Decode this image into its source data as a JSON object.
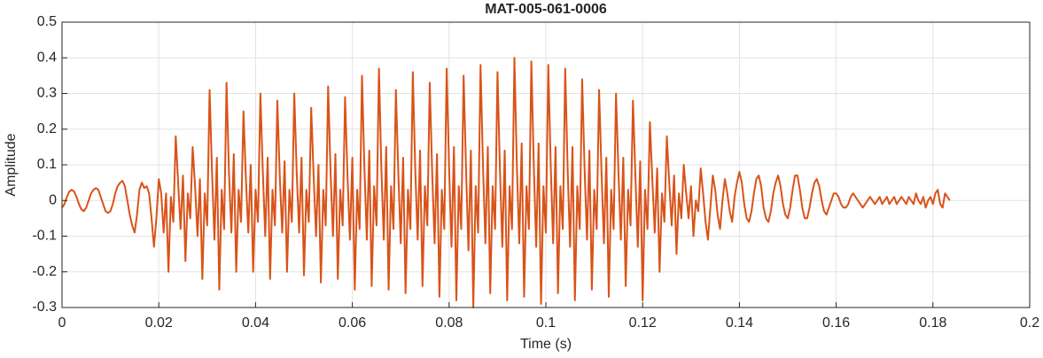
{
  "chart_data": {
    "type": "line",
    "title": "MAT-005-061-0006",
    "x_label": "Time (s)",
    "y_label": "Amplitude",
    "xlim": [
      0,
      0.2
    ],
    "ylim": [
      -0.3,
      0.5
    ],
    "xticks": [
      0,
      0.02,
      0.04,
      0.06,
      0.08,
      0.1,
      0.12,
      0.14,
      0.16,
      0.18,
      0.2
    ],
    "yticks": [
      -0.3,
      -0.2,
      -0.1,
      0,
      0.1,
      0.2,
      0.3,
      0.4,
      0.5
    ],
    "grid": true,
    "series": [
      {
        "color": "#d95319",
        "x": [
          0,
          0.0005,
          0.001,
          0.0015,
          0.002,
          0.0025,
          0.003,
          0.0035,
          0.004,
          0.0045,
          0.005,
          0.0055,
          0.006,
          0.0065,
          0.007,
          0.0075,
          0.008,
          0.0085,
          0.009,
          0.0095,
          0.01,
          0.0105,
          0.011,
          0.0115,
          0.012,
          0.0125,
          0.013,
          0.0135,
          0.014,
          0.0145,
          0.015,
          0.0155,
          0.016,
          0.0165,
          0.017,
          0.0175,
          0.018,
          0.0185,
          0.019,
          0.0195,
          0.02,
          0.0205,
          0.021,
          0.0215,
          0.022,
          0.0225,
          0.023,
          0.0235,
          0.024,
          0.0245,
          0.025,
          0.0255,
          0.026,
          0.0265,
          0.027,
          0.0275,
          0.028,
          0.0285,
          0.029,
          0.0295,
          0.03,
          0.0305,
          0.031,
          0.0315,
          0.032,
          0.0325,
          0.033,
          0.0335,
          0.034,
          0.0345,
          0.035,
          0.0355,
          0.036,
          0.0365,
          0.037,
          0.0375,
          0.038,
          0.0385,
          0.039,
          0.0395,
          0.04,
          0.0405,
          0.041,
          0.0415,
          0.042,
          0.0425,
          0.043,
          0.0435,
          0.044,
          0.0445,
          0.045,
          0.0455,
          0.046,
          0.0465,
          0.047,
          0.0475,
          0.048,
          0.0485,
          0.049,
          0.0495,
          0.05,
          0.0505,
          0.051,
          0.0515,
          0.052,
          0.0525,
          0.053,
          0.0535,
          0.054,
          0.0545,
          0.055,
          0.0555,
          0.056,
          0.0565,
          0.057,
          0.0575,
          0.058,
          0.0585,
          0.059,
          0.0595,
          0.06,
          0.0605,
          0.061,
          0.0615,
          0.062,
          0.0625,
          0.063,
          0.0635,
          0.064,
          0.0645,
          0.065,
          0.0655,
          0.066,
          0.0665,
          0.067,
          0.0675,
          0.068,
          0.0685,
          0.069,
          0.0695,
          0.07,
          0.0705,
          0.071,
          0.0715,
          0.072,
          0.0725,
          0.073,
          0.0735,
          0.074,
          0.0745,
          0.075,
          0.0755,
          0.076,
          0.0765,
          0.077,
          0.0775,
          0.078,
          0.0785,
          0.079,
          0.0795,
          0.08,
          0.0805,
          0.081,
          0.0815,
          0.082,
          0.0825,
          0.083,
          0.0835,
          0.084,
          0.0845,
          0.085,
          0.0855,
          0.086,
          0.0865,
          0.087,
          0.0875,
          0.088,
          0.0885,
          0.089,
          0.0895,
          0.09,
          0.0905,
          0.091,
          0.0915,
          0.092,
          0.0925,
          0.093,
          0.0935,
          0.094,
          0.0945,
          0.095,
          0.0955,
          0.096,
          0.0965,
          0.097,
          0.0975,
          0.098,
          0.0985,
          0.099,
          0.0995,
          0.1,
          0.1005,
          0.101,
          0.1015,
          0.102,
          0.1025,
          0.103,
          0.1035,
          0.104,
          0.1045,
          0.105,
          0.1055,
          0.106,
          0.1065,
          0.107,
          0.1075,
          0.108,
          0.1085,
          0.109,
          0.1095,
          0.11,
          0.1105,
          0.111,
          0.1115,
          0.112,
          0.1125,
          0.113,
          0.1135,
          0.114,
          0.1145,
          0.115,
          0.1155,
          0.116,
          0.1165,
          0.117,
          0.1175,
          0.118,
          0.1185,
          0.119,
          0.1195,
          0.12,
          0.1205,
          0.121,
          0.1215,
          0.122,
          0.1225,
          0.123,
          0.1235,
          0.124,
          0.1245,
          0.125,
          0.1255,
          0.126,
          0.1265,
          0.127,
          0.1275,
          0.128,
          0.1285,
          0.129,
          0.1295,
          0.13,
          0.1305,
          0.131,
          0.1315,
          0.132,
          0.1325,
          0.133,
          0.1335,
          0.134,
          0.1345,
          0.135,
          0.1355,
          0.136,
          0.1365,
          0.137,
          0.1375,
          0.138,
          0.1385,
          0.139,
          0.1395,
          0.14,
          0.1405,
          0.141,
          0.1415,
          0.142,
          0.1425,
          0.143,
          0.1435,
          0.144,
          0.1445,
          0.145,
          0.1455,
          0.146,
          0.1465,
          0.147,
          0.1475,
          0.148,
          0.1485,
          0.149,
          0.1495,
          0.15,
          0.1505,
          0.151,
          0.1515,
          0.152,
          0.1525,
          0.153,
          0.1535,
          0.154,
          0.1545,
          0.155,
          0.1555,
          0.156,
          0.1565,
          0.157,
          0.1575,
          0.158,
          0.1585,
          0.159,
          0.1595,
          0.16,
          0.1605,
          0.161,
          0.1615,
          0.162,
          0.1625,
          0.163,
          0.1635,
          0.164,
          0.1645,
          0.165,
          0.1655,
          0.166,
          0.1665,
          0.167,
          0.1675,
          0.168,
          0.1685,
          0.169,
          0.1695,
          0.17,
          0.1705,
          0.171,
          0.1715,
          0.172,
          0.1725,
          0.173,
          0.1735,
          0.174,
          0.1745,
          0.175,
          0.1755,
          0.176,
          0.1765,
          0.177,
          0.1775,
          0.178,
          0.1785,
          0.179,
          0.1795,
          0.18,
          0.1805,
          0.181,
          0.1815,
          0.182,
          0.1825,
          0.183,
          0.1835
        ],
        "values": [
          -0.02,
          -0.01,
          0.01,
          0.025,
          0.03,
          0.025,
          0.01,
          -0.01,
          -0.025,
          -0.03,
          -0.02,
          0,
          0.02,
          0.03,
          0.035,
          0.03,
          0.01,
          -0.01,
          -0.03,
          -0.035,
          -0.03,
          -0.01,
          0.02,
          0.04,
          0.05,
          0.055,
          0.04,
          0,
          -0.04,
          -0.07,
          -0.09,
          -0.04,
          0.03,
          0.05,
          0.035,
          0.04,
          0.02,
          -0.05,
          -0.13,
          -0.05,
          0.06,
          0.02,
          -0.09,
          0.02,
          -0.2,
          0.01,
          -0.06,
          0.18,
          0.05,
          -0.08,
          0.07,
          -0.17,
          0.02,
          -0.05,
          0.15,
          0.04,
          -0.1,
          0.06,
          -0.22,
          0.02,
          -0.07,
          0.31,
          0.08,
          -0.11,
          0.12,
          -0.25,
          0.03,
          -0.08,
          0.33,
          0.08,
          -0.09,
          0.13,
          -0.2,
          0.03,
          -0.06,
          0.25,
          0.06,
          -0.09,
          0.1,
          -0.2,
          0.03,
          -0.06,
          0.3,
          0.08,
          -0.1,
          0.12,
          -0.22,
          0.03,
          -0.07,
          0.28,
          0.07,
          -0.09,
          0.11,
          -0.2,
          0.03,
          -0.06,
          0.3,
          0.08,
          -0.09,
          0.12,
          -0.21,
          0.03,
          -0.06,
          0.26,
          0.07,
          -0.1,
          0.1,
          -0.23,
          0.03,
          -0.07,
          0.32,
          0.08,
          -0.1,
          0.13,
          -0.22,
          0.03,
          -0.07,
          0.29,
          0.07,
          -0.11,
          0.12,
          -0.25,
          0.03,
          -0.08,
          0.35,
          0.09,
          -0.11,
          0.14,
          -0.24,
          0.04,
          -0.07,
          0.37,
          0.09,
          -0.11,
          0.15,
          -0.25,
          0.04,
          -0.08,
          0.31,
          0.08,
          -0.12,
          0.12,
          -0.26,
          0.03,
          -0.08,
          0.36,
          0.09,
          -0.11,
          0.14,
          -0.24,
          0.04,
          -0.07,
          0.33,
          0.08,
          -0.12,
          0.13,
          -0.27,
          0.03,
          -0.08,
          0.37,
          0.09,
          -0.13,
          0.15,
          -0.28,
          0.04,
          -0.08,
          0.35,
          0.09,
          -0.14,
          0.14,
          -0.3,
          0.04,
          -0.09,
          0.38,
          0.1,
          -0.12,
          0.15,
          -0.26,
          0.04,
          -0.08,
          0.36,
          0.09,
          -0.13,
          0.14,
          -0.28,
          0.04,
          -0.08,
          0.4,
          0.1,
          -0.12,
          0.16,
          -0.27,
          0.04,
          -0.08,
          0.39,
          0.1,
          -0.13,
          0.16,
          -0.29,
          0.04,
          -0.09,
          0.38,
          0.1,
          -0.12,
          0.15,
          -0.26,
          0.04,
          -0.08,
          0.37,
          0.09,
          -0.13,
          0.15,
          -0.28,
          0.04,
          -0.08,
          0.34,
          0.09,
          -0.11,
          0.14,
          -0.25,
          0.03,
          -0.08,
          0.31,
          0.08,
          -0.12,
          0.12,
          -0.27,
          0.03,
          -0.08,
          0.3,
          0.08,
          -0.11,
          0.12,
          -0.24,
          0.03,
          -0.07,
          0.28,
          0.07,
          -0.13,
          0.11,
          -0.28,
          0.03,
          -0.08,
          0.22,
          0.06,
          -0.09,
          0.09,
          -0.2,
          0.02,
          -0.06,
          0.18,
          0.05,
          -0.07,
          0.07,
          -0.15,
          0.02,
          -0.05,
          0.1,
          0.02,
          -0.05,
          0.04,
          -0.1,
          0,
          -0.03,
          0.09,
          0.02,
          -0.06,
          -0.11,
          -0.02,
          0.07,
          0.03,
          -0.04,
          -0.08,
          0,
          0.06,
          0.02,
          -0.03,
          -0.06,
          0.01,
          0.05,
          0.08,
          0.05,
          -0.01,
          -0.05,
          -0.06,
          -0.03,
          0.02,
          0.06,
          0.07,
          0.04,
          -0.02,
          -0.05,
          -0.06,
          -0.03,
          0.02,
          0.05,
          0.07,
          0.04,
          -0.01,
          -0.04,
          -0.05,
          -0.02,
          0.03,
          0.07,
          0.07,
          0.03,
          -0.02,
          -0.05,
          -0.05,
          -0.02,
          0.02,
          0.05,
          0.06,
          0.04,
          0,
          -0.03,
          -0.04,
          -0.02,
          0,
          0.02,
          0.02,
          0.01,
          -0.01,
          -0.02,
          -0.02,
          -0.01,
          0.01,
          0.02,
          0.01,
          0,
          -0.01,
          -0.02,
          -0.01,
          0,
          0.01,
          0,
          -0.01,
          0,
          0.01,
          -0.01,
          0,
          0.01,
          -0.01,
          0,
          0.01,
          -0.01,
          0,
          0.01,
          0,
          -0.01,
          0.01,
          0,
          -0.01,
          0.02,
          0,
          -0.01,
          0.01,
          -0.02,
          0,
          0.01,
          -0.01,
          0.02,
          0.03,
          -0.01,
          -0.02,
          0.02,
          0.01,
          0
        ]
      }
    ]
  }
}
